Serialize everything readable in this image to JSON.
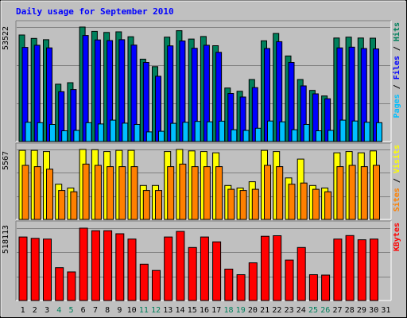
{
  "chart_data": {
    "title": "Daily usage for September 2010",
    "days": [
      "1",
      "2",
      "3",
      "4",
      "5",
      "6",
      "7",
      "8",
      "9",
      "10",
      "11",
      "12",
      "13",
      "14",
      "15",
      "16",
      "17",
      "18",
      "19",
      "20",
      "21",
      "22",
      "23",
      "24",
      "25",
      "26",
      "27",
      "28",
      "29",
      "30",
      "31"
    ],
    "weekend_days": [
      "4",
      "5",
      "11",
      "12",
      "18",
      "19",
      "25",
      "26"
    ],
    "colors": {
      "background": "#c0c0c0",
      "title": "#0000ff",
      "hits": "#00805c",
      "files": "#0000ff",
      "pages": "#00c0ff",
      "visits": "#ffff00",
      "sites": "#ff8000",
      "kbytes": "#ff0000",
      "weekday_label": "#000000",
      "weekend_label": "#00805c"
    },
    "panels": [
      {
        "type": "bar",
        "max_label": "53522",
        "ymax": 53522,
        "legend": [
          {
            "text": "Pages",
            "color": "#00c0ff"
          },
          {
            "text": "Files",
            "color": "#0000ff"
          },
          {
            "text": "Hits",
            "color": "#00805c"
          }
        ],
        "series": [
          {
            "name": "Hits",
            "values": [
              49800,
              48200,
              47600,
              26800,
              27500,
              53522,
              51500,
              51000,
              51300,
              49000,
              38500,
              35000,
              48800,
              51800,
              47900,
              49100,
              44800,
              25000,
              23500,
              29000,
              47100,
              50500,
              40000,
              29000,
              23900,
              21300,
              48400,
              48800,
              48400,
              48300,
              null
            ]
          },
          {
            "name": "Files",
            "values": [
              44000,
              45000,
              43800,
              23300,
              24300,
              49600,
              47500,
              47200,
              47600,
              45100,
              37000,
              30500,
              44700,
              47000,
              43600,
              45000,
              41700,
              22500,
              20800,
              25200,
              43500,
              46700,
              37000,
              26000,
              22300,
              20000,
              43800,
              44100,
              43500,
              43300,
              null
            ]
          },
          {
            "name": "Pages",
            "values": [
              9000,
              8800,
              8000,
              5000,
              5200,
              8800,
              8200,
              10000,
              8600,
              8000,
              4500,
              4800,
              8500,
              9000,
              9400,
              9200,
              9500,
              5500,
              5200,
              6200,
              9600,
              9200,
              5500,
              8000,
              5000,
              5200,
              10000,
              9600,
              9000,
              8800,
              null
            ]
          }
        ]
      },
      {
        "type": "bar",
        "max_label": "5567",
        "ymax": 5567,
        "legend": [
          {
            "text": "Sites",
            "color": "#ff8000"
          },
          {
            "text": "Visits",
            "color": "#ffff00"
          }
        ],
        "series": [
          {
            "name": "Visits",
            "values": [
              5500,
              5500,
              5400,
              2800,
              2500,
              5567,
              5550,
              5400,
              5500,
              5500,
              2700,
              2700,
              5400,
              5567,
              5450,
              5400,
              5300,
              2700,
              2500,
              3000,
              5500,
              5400,
              3300,
              4800,
              2700,
              2500,
              5300,
              5400,
              5300,
              5450,
              null
            ]
          },
          {
            "name": "Sites",
            "values": [
              4300,
              4200,
              4000,
              2300,
              2200,
              4400,
              4300,
              4200,
              4200,
              4200,
              2300,
              2300,
              4200,
              4400,
              4200,
              4200,
              4200,
              2400,
              2300,
              2400,
              4300,
              4200,
              2800,
              2900,
              2400,
              2200,
              4200,
              4300,
              4200,
              4300,
              null
            ]
          }
        ]
      },
      {
        "type": "bar",
        "max_label": "518113",
        "ymax": 518113,
        "legend": [
          {
            "text": "KBytes",
            "color": "#ff0000"
          }
        ],
        "series": [
          {
            "name": "KBytes",
            "values": [
              455000,
              445000,
              440000,
              235000,
              205000,
              518113,
              500000,
              500000,
              478000,
              440000,
              260000,
              215000,
              455000,
              495000,
              380000,
              455000,
              420000,
              225000,
              185000,
              270000,
              460000,
              464000,
              290000,
              380000,
              185000,
              182000,
              440000,
              465000,
              435000,
              440000,
              null
            ]
          }
        ]
      }
    ]
  }
}
